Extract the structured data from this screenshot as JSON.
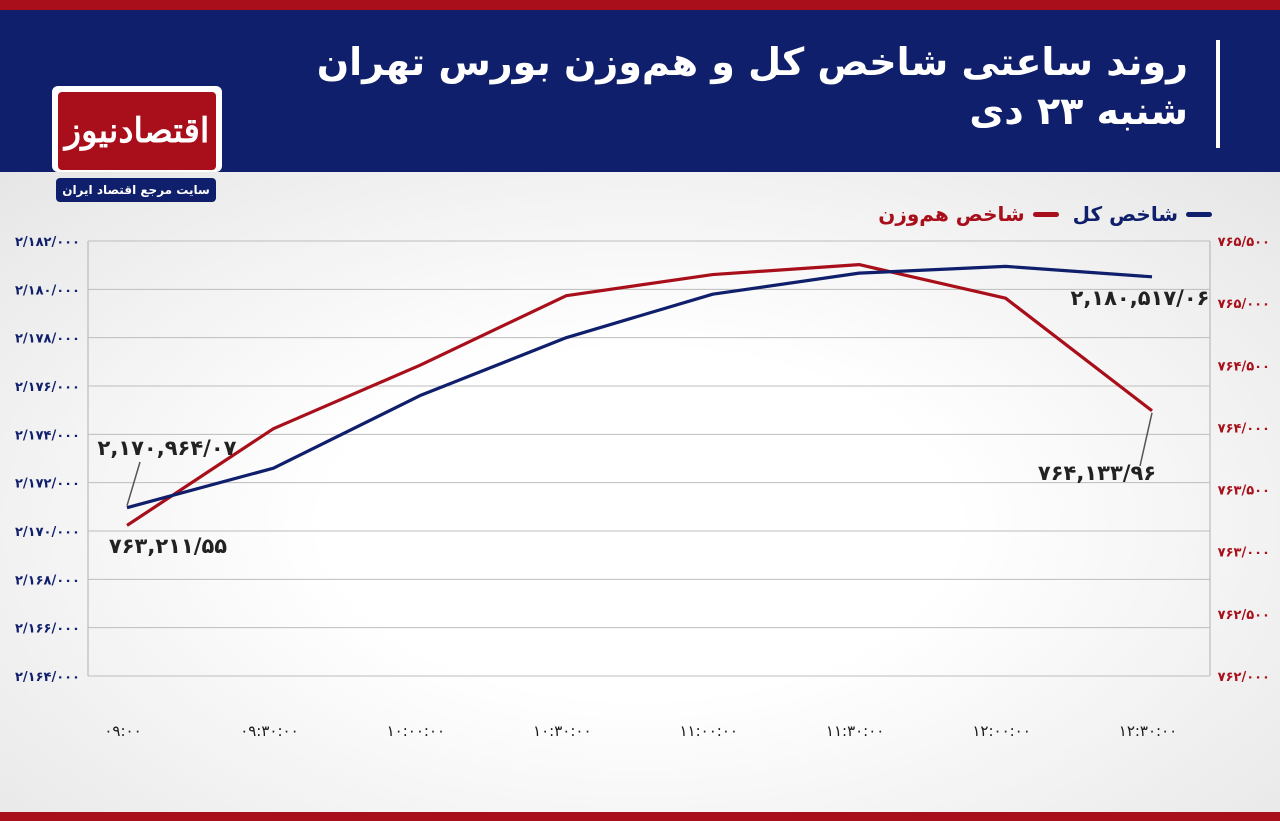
{
  "header": {
    "title": "روند ساعتی شاخص کل و هم‌وزن بورس تهران",
    "subtitle": "شنبه ۲۳ دی"
  },
  "logo": {
    "name": "اقتصادنیوز",
    "tagline": "سایت مرجع اقتصاد ایران"
  },
  "colors": {
    "header_bg": "#0f1f6b",
    "accent_red": "#a80f1a",
    "series_total": "#0f1f6b",
    "series_equal": "#a80f1a"
  },
  "chart_data": {
    "type": "line",
    "legend_position": "top-right",
    "grid": true,
    "x": [
      "۰۹:۰۰",
      "۰۹:۳۰:۰۰",
      "۱۰:۰۰:۰۰",
      "۱۰:۳۰:۰۰",
      "۱۱:۰۰:۰۰",
      "۱۱:۳۰:۰۰",
      "۱۲:۰۰:۰۰",
      "۱۲:۳۰:۰۰"
    ],
    "y_left": {
      "min": 2164000,
      "max": 2182000,
      "ticks": [
        2182000,
        2180000,
        2178000,
        2176000,
        2174000,
        2172000,
        2170000,
        2168000,
        2166000,
        2164000
      ],
      "tick_labels": [
        "۲/۱۸۲/۰۰۰",
        "۲/۱۸۰/۰۰۰",
        "۲/۱۷۸/۰۰۰",
        "۲/۱۷۶/۰۰۰",
        "۲/۱۷۴/۰۰۰",
        "۲/۱۷۲/۰۰۰",
        "۲/۱۷۰/۰۰۰",
        "۲/۱۶۸/۰۰۰",
        "۲/۱۶۶/۰۰۰",
        "۲/۱۶۴/۰۰۰"
      ]
    },
    "y_right": {
      "min": 762000,
      "max": 765500,
      "tick_labels": [
        "۷۶۵/۵۰۰",
        "۷۶۵/۰۰۰",
        "۷۶۴/۵۰۰",
        "۷۶۴/۰۰۰",
        "۷۶۳/۵۰۰",
        "۷۶۳/۰۰۰",
        "۷۶۲/۵۰۰",
        "۷۶۲/۰۰۰"
      ]
    },
    "series": [
      {
        "name": "شاخص کل",
        "axis": "left",
        "values": [
          2170964.07,
          2172600,
          2175600,
          2178000,
          2179800,
          2180670,
          2180950,
          2180517.06
        ],
        "first_label": "۲,۱۷۰,۹۶۴/۰۷",
        "last_label": "۲,۱۸۰,۵۱۷/۰۶"
      },
      {
        "name": "شاخص هم‌وزن",
        "axis": "right",
        "values": [
          763211.55,
          763990,
          764500,
          765060,
          765230,
          765310,
          765040,
          764133.96
        ],
        "first_label": "۷۶۳,۲۱۱/۵۵",
        "last_label": "۷۶۴,۱۳۳/۹۶"
      }
    ]
  }
}
